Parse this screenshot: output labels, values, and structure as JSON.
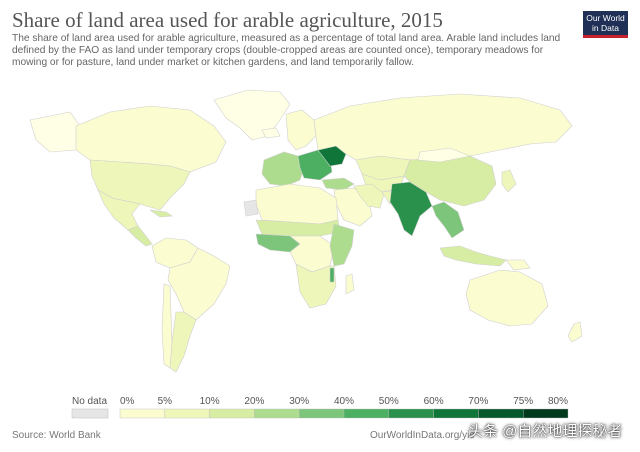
{
  "header": {
    "title": "Share of land area used for arable agriculture, 2015",
    "subtitle": "The share of land area used for arable agriculture, measured as a percentage of total land area. Arable land includes land defined by the FAO as land under temporary crops (double-cropped areas are counted once), temporary meadows for mowing or for pasture, land under market or kitchen gardens, and land temporarily fallow.",
    "logo_line1": "Our World",
    "logo_line2": "in Data"
  },
  "legend": {
    "no_data_label": "No data",
    "no_data_color": "#e6e6e6",
    "bins": [
      {
        "label": "0%",
        "color": "#ffffe5"
      },
      {
        "label": "5%",
        "color": "#fbfcd0"
      },
      {
        "label": "10%",
        "color": "#eef7b9"
      },
      {
        "label": "20%",
        "color": "#d7eda3"
      },
      {
        "label": "30%",
        "color": "#aedc8e"
      },
      {
        "label": "40%",
        "color": "#7cc57a"
      },
      {
        "label": "50%",
        "color": "#4caf62"
      },
      {
        "label": "60%",
        "color": "#2a914c"
      },
      {
        "label": "70%",
        "color": "#0f7538"
      },
      {
        "label": "75%",
        "color": "#04582c"
      },
      {
        "label": "80%",
        "color": "#003a1d"
      }
    ]
  },
  "regions": [
    {
      "name": "greenland",
      "color": "#ffffe5"
    },
    {
      "name": "canada",
      "color": "#fbfcd0"
    },
    {
      "name": "alaska",
      "color": "#ffffe5"
    },
    {
      "name": "usa",
      "color": "#eef7b9"
    },
    {
      "name": "mexico",
      "color": "#eef7b9"
    },
    {
      "name": "central-america",
      "color": "#d7eda3"
    },
    {
      "name": "cuba",
      "color": "#d7eda3"
    },
    {
      "name": "south-america-north",
      "color": "#fbfcd0"
    },
    {
      "name": "brazil",
      "color": "#fbfcd0"
    },
    {
      "name": "argentina",
      "color": "#eef7b9"
    },
    {
      "name": "chile",
      "color": "#fbfcd0"
    },
    {
      "name": "iceland",
      "color": "#ffffe5"
    },
    {
      "name": "scandinavia",
      "color": "#fbfcd0"
    },
    {
      "name": "western-europe",
      "color": "#aedc8e"
    },
    {
      "name": "eastern-europe",
      "color": "#4caf62"
    },
    {
      "name": "ukraine",
      "color": "#0f7538"
    },
    {
      "name": "russia",
      "color": "#fbfcd0"
    },
    {
      "name": "kazakhstan",
      "color": "#eef7b9"
    },
    {
      "name": "central-asia",
      "color": "#eef7b9"
    },
    {
      "name": "turkey",
      "color": "#aedc8e"
    },
    {
      "name": "middle-east",
      "color": "#fbfcd0"
    },
    {
      "name": "iran",
      "color": "#eef7b9"
    },
    {
      "name": "afghanistan",
      "color": "#eef7b9"
    },
    {
      "name": "india",
      "color": "#2a914c"
    },
    {
      "name": "china",
      "color": "#d7eda3"
    },
    {
      "name": "mongolia",
      "color": "#ffffe5"
    },
    {
      "name": "southeast-asia",
      "color": "#7cc57a"
    },
    {
      "name": "indonesia",
      "color": "#d7eda3"
    },
    {
      "name": "japan",
      "color": "#eef7b9"
    },
    {
      "name": "north-africa",
      "color": "#fbfcd0"
    },
    {
      "name": "western-sahara",
      "color": "#e6e6e6"
    },
    {
      "name": "sahel",
      "color": "#d7eda3"
    },
    {
      "name": "west-africa",
      "color": "#7cc57a"
    },
    {
      "name": "central-africa",
      "color": "#fbfcd0"
    },
    {
      "name": "east-africa",
      "color": "#aedc8e"
    },
    {
      "name": "southern-africa",
      "color": "#eef7b9"
    },
    {
      "name": "malawi",
      "color": "#4caf62"
    },
    {
      "name": "madagascar",
      "color": "#fbfcd0"
    },
    {
      "name": "australia",
      "color": "#fbfcd0"
    },
    {
      "name": "new-zealand",
      "color": "#fbfcd0"
    },
    {
      "name": "papua",
      "color": "#fbfcd0"
    }
  ],
  "footer": {
    "source": "Source: World Bank",
    "url": "OurWorldInData.org/yie",
    "watermark": "头条 @自然地理探秘者"
  }
}
